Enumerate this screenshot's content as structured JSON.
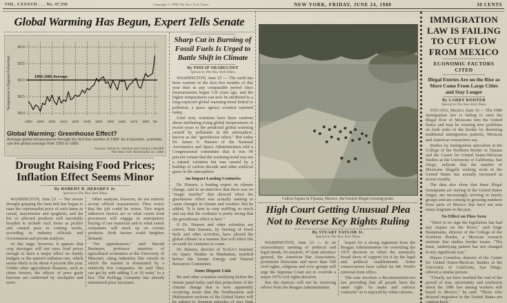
{
  "masthead": {
    "volume": "VOL. CXXXVII . . . No. 47,556",
    "copyright": "Copyright © 1988 The New York Times",
    "dateline": "NEW YORK, FRIDAY, JUNE 24, 1988",
    "price": "30 CENTS"
  },
  "banner_headline": "Global Warming Has Begun, Expert Tells Senate",
  "chart_data": {
    "type": "line",
    "title": "Global Warming: Greenhouse Effect?",
    "caption": "Average global temperatures through the first five months of 1988. As a baseline, scientists use the global average from 1950 to 1980.",
    "source": "Source: James E. Hansen and Sergej Lebedeff",
    "credit": "The New York Times/June 24, 1988",
    "ylabel": "Temperature in Degrees Fahrenheit",
    "annotation": "1950-1980 Average",
    "baseline_value": 59.0,
    "ylim": [
      57.9,
      60.15
    ],
    "yticks": [
      58.0,
      58.5,
      59.0,
      59.5,
      60.0
    ],
    "xticks": [
      1880,
      1890,
      1900,
      1910,
      1920,
      1930,
      1940,
      1950,
      1960,
      1970,
      1980,
      1988
    ],
    "xtick_labels": [
      "1880",
      "1890",
      "1900",
      "1910",
      "1920",
      "1930",
      "1940",
      "1950",
      "1960",
      "1970",
      "1980",
      "'88"
    ],
    "x": [
      1880,
      1882,
      1884,
      1886,
      1888,
      1890,
      1892,
      1894,
      1896,
      1898,
      1900,
      1902,
      1904,
      1906,
      1908,
      1910,
      1912,
      1914,
      1916,
      1918,
      1920,
      1922,
      1924,
      1926,
      1928,
      1930,
      1932,
      1934,
      1936,
      1938,
      1940,
      1942,
      1944,
      1946,
      1948,
      1950,
      1952,
      1954,
      1956,
      1958,
      1960,
      1962,
      1964,
      1966,
      1968,
      1970,
      1972,
      1974,
      1976,
      1978,
      1980,
      1982,
      1984,
      1986,
      1988
    ],
    "values": [
      58.35,
      58.25,
      58.1,
      58.25,
      58.2,
      58.05,
      58.3,
      58.25,
      58.5,
      58.35,
      58.55,
      58.35,
      58.25,
      58.5,
      58.3,
      58.4,
      58.35,
      58.65,
      58.4,
      58.45,
      58.55,
      58.5,
      58.55,
      58.7,
      58.6,
      58.75,
      58.7,
      58.8,
      58.85,
      59.05,
      58.95,
      59.05,
      59.1,
      58.9,
      58.95,
      58.75,
      59.0,
      58.85,
      58.7,
      59.0,
      58.95,
      59.0,
      58.7,
      58.85,
      58.9,
      59.0,
      59.05,
      58.8,
      58.75,
      59.0,
      59.2,
      59.1,
      59.15,
      59.2,
      59.75
    ]
  },
  "drought": {
    "headline_line1": "Drought Raising Food Prices;",
    "headline_line2": "Inflation Effect Seems Minor",
    "byline": "By ROBERT D. HERSHEY Jr.",
    "credit": "Special to The New York Times",
    "col1": [
      "WASHINGTON, June 23 — The severe drought gripping the farm belt has begun to raise the supermarket price of such items as cereal, mayonnaise and spaghetti, and the list of affected products will inevitably broaden to include such items as pickles and canned peas in coming weeks, according to industry officials and Government and private analysts.",
      "At this stage, however, it appears that crop shortages will not raise food prices enough to have a major effect on family budgets or the nation's inflation rate, which seems likely to be about 4 percent this year. Unlike other agricultural disasters, such as citrus freezes, the effects of poor grain harvests are cushioned by stockpiles and more."
    ],
    "col2": [
      "Other analysts, however, do not entirely accept official reassurances. They worry that the jolt could be worse. Two major unknown factors are to what extent food processors will engage in anticipatory buying of raw materials and to what extent consumers will stock up on certain products. Both factors could heighten demand.",
      "\"I'm apprehensive,\" said Harold Breimyer, professor emeritus of agricultural economics at the University of Missouri, citing industries like cereals in which the market is dominated by a relatively few companies. He said \"they can get by with adding 5 or 10 cents\" to a box. The Kellogg Company has already announced price increases."
    ]
  },
  "climate": {
    "deck": "Sharp Cut in Burning of Fossil Fuels Is Urged to Battle Shift in Climate",
    "byline": "By PHILIP SHABECOFF",
    "credit": "Special to The New York Times",
    "lede": [
      "WASHINGTON, June 23 — The earth has been warmer in the first five months of this year than in any comparable period since measurements began 130 years ago, and the higher temperatures can now be attributed to a long-expected global warming trend linked to pollution, a space agency scientist reported today.",
      "Until now, scientists have been cautious about attributing rising global temperatures of recent years to the predicted global warming caused by pollutants in the atmosphere, known as the \"greenhouse effect.\" But today Dr. James E. Hansen of the National Aeronautics and Space Administration told a Congressional committee that it was 99 percent certain that the warming trend was not a natural variation but was caused by a buildup of carbon dioxide and other artificial gases in the atmosphere."
    ],
    "subhead1": "An Impact Lasting Centuries",
    "body1": [
      "Dr. Hansen, a leading expert on climate change, said in an interview that there was no \"magic number\" that showed when the greenhouse effect was actually starting to cause changes in climate and weather. But he added, \"It is time to stop waffling so much and say that the evidence is pretty strong that the greenhouse effect is here.\"",
      "If Dr. Hansen and other scientists are correct, then humans, by burning of fossil fuels and other activities, have altered the global climate in a manner that will affect life on earth for centuries to come.",
      "Dr. Hansen, director of NASA's Institute for Space Studies in Manhattan, testified before the Senate Energy and Natural Resources Committee."
    ],
    "subhead2": "Some Dispute Link",
    "body2": [
      "He and other scientists testifying before the Senate panel today said that projections of the climate change that is now apparently occurring mean that the Southeastern and Midwestern sections of the United States will be subject to frequent episodes of very high temperatures and drought."
    ]
  },
  "photo": {
    "caption": "Cañon Zapata in Tijuana, Mexico, the busiest illegal crossing point."
  },
  "high_court": {
    "headline_line1": "High Court Getting Unusual Plea",
    "headline_line2": "Not to Reverse Key Rights Ruling",
    "byline": "By STUART TAYLOR Jr.",
    "credit": "Special to The New York Times",
    "col1": [
      "WASHINGTON, June 23 — In an extraordinary meeting of political and legal minds, 66 senators, 47 state attorneys general, the American Bar Association, prominent historians and more than 100 civil rights, religious and civic groups will urge the Supreme Court not to override a major 1976 civil rights decision.",
      "But the Justices will not be receiving advice from the Reagan Administration."
    ],
    "col2": [
      "hoped for a strong argument from the Reagan Administration for overruling the 1976 decision to offset the unusually broad show of support for it by the legal and political establishment. Some conservatives have called for Mr. Fried's removal from office.",
      "The case involves a Reconstruction-era law providing that all people have the same right \"to make and enforce contracts\" as is enjoyed by white citizens."
    ]
  },
  "immigration": {
    "headline": "IMMIGRATION LAW IS FAILING TO CUT FLOW FROM MEXICO",
    "kicker": "ECONOMIC FACTORS CITED",
    "deck": "Illegal Entries Are on the Rise as More Come From Large Cities and Stay Longer",
    "byline": "By LARRY ROHTER",
    "credit": "Special to The New York Times",
    "body1": [
      "TIJUANA, Mexico, June 16 — The 1986 immigration law is failing to stem the illegal flow of Mexicans into the United States and may be creating new problems on both sides of the border by distorting traditional immigration patterns, Mexican and American researchers say.",
      "Studies by immigration specialists at the College of the Northern Border in Tijuana and the Center for United States-Mexican Studies at the University of California, San Diego, indicate that the number of Mexicans illegally seeking work in the United States has actually increased in recent months.",
      "The data also show that these illegal immigrants are staying in the United States longer, are increasingly arriving in family groups and are coming in growing numbers from parts of Mexico that have not sent many migrants in the past."
    ],
    "subhead": "No Effect on Flow Seen",
    "body2": [
      "\"There is no sign the legislation has had any impact on the flows,\" said Jorge Bustamante, director of the College of the Northern Border, a Mexican research institute that studies border issues. \"The basic, underlying pattern has not changed in any significant way.\"",
      "Wayne Cornelius, director of the Center for United States-Mexican Studies at the University of California, San Diego, offered a similar picture.",
      "\"Clearly, we have reached the end of the period of fear, uncertainty and confusion about the 1986 law among workers still based in Mexico,\" he said. \"Those who delayed migration to the United States are coming back.\""
    ]
  }
}
